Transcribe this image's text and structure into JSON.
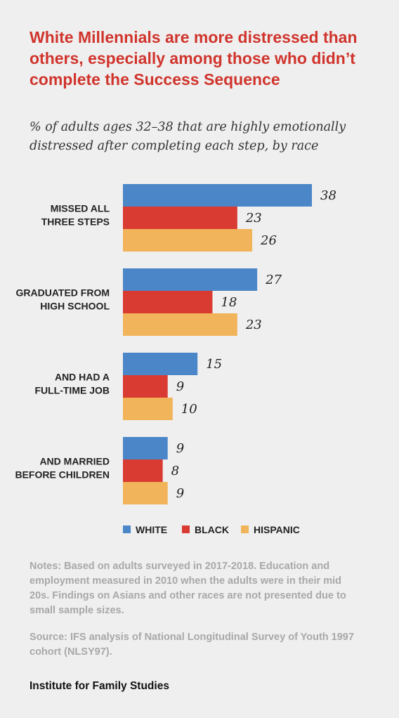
{
  "chart_data": {
    "type": "bar",
    "orientation": "horizontal",
    "title": "White Millennials are more distressed than others, especially among those who didn’t complete the Success Sequence",
    "subtitle": "% of adults ages 32–38 that are highly emotionally distressed after completing each step, by race",
    "categories": [
      [
        "MISSED ALL",
        "THREE STEPS"
      ],
      [
        "GRADUATED FROM",
        "HIGH SCHOOL"
      ],
      [
        "AND HAD A",
        "FULL-TIME JOB"
      ],
      [
        "AND MARRIED",
        "BEFORE CHILDREN"
      ]
    ],
    "series": [
      {
        "name": "WHITE",
        "color": "#4a86c8",
        "values": [
          38,
          27,
          15,
          9
        ]
      },
      {
        "name": "BLACK",
        "color": "#d93a32",
        "values": [
          23,
          18,
          9,
          8
        ]
      },
      {
        "name": "HISPANIC",
        "color": "#f1b45a",
        "values": [
          26,
          23,
          10,
          9
        ]
      }
    ],
    "xlim": [
      0,
      38
    ],
    "grid": false,
    "legend": "bottom"
  },
  "notes": "Notes: Based on adults surveyed in 2017-2018. Education and employment measured in 2010 when the adults were in their mid 20s. Findings on Asians and other races are not presented due to small sample sizes.",
  "source": "Source: IFS analysis of National Longitudinal Survey of Youth 1997 cohort (NLSY97).",
  "publisher": "Institute for Family Studies"
}
